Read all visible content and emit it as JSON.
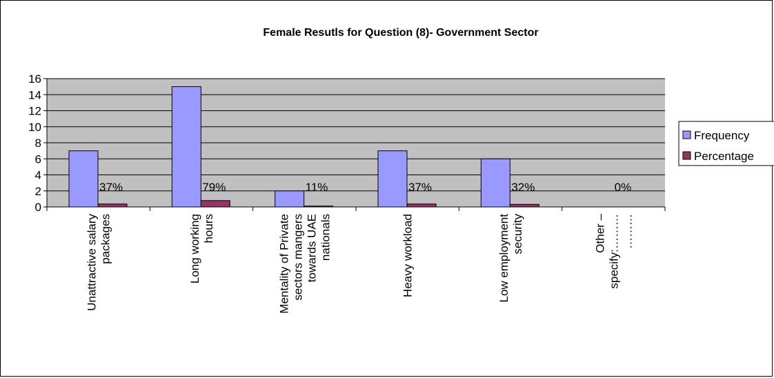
{
  "chart_data": {
    "type": "bar",
    "title": "Female Resutls for Question (8)- Government Sector",
    "xlabel": "",
    "ylabel": "",
    "ylim": [
      0,
      16
    ],
    "yticks": [
      "0",
      "2",
      "4",
      "6",
      "8",
      "10",
      "12",
      "14",
      "16"
    ],
    "grid": true,
    "legend_position": "right",
    "categories": [
      [
        "Unattractive salary",
        "packages"
      ],
      [
        "Long working",
        "hours"
      ],
      [
        "Mentality of Private",
        "sectors mangers",
        "towards UAE",
        "nationals"
      ],
      [
        "Heavy workload"
      ],
      [
        "Low employment",
        "security"
      ],
      [
        "Other –",
        "specify:………",
        "………"
      ]
    ],
    "series": [
      {
        "name": "Frequency",
        "values": [
          7,
          15,
          2,
          7,
          6,
          0
        ],
        "color": "#9999ff"
      },
      {
        "name": "Percentage",
        "values": [
          0.37,
          0.79,
          0.11,
          0.37,
          0.32,
          0
        ],
        "color": "#993366"
      }
    ],
    "data_labels": [
      "37%",
      "79%",
      "11%",
      "37%",
      "32%",
      "0%"
    ],
    "plot_background": "#c0c0c0"
  }
}
